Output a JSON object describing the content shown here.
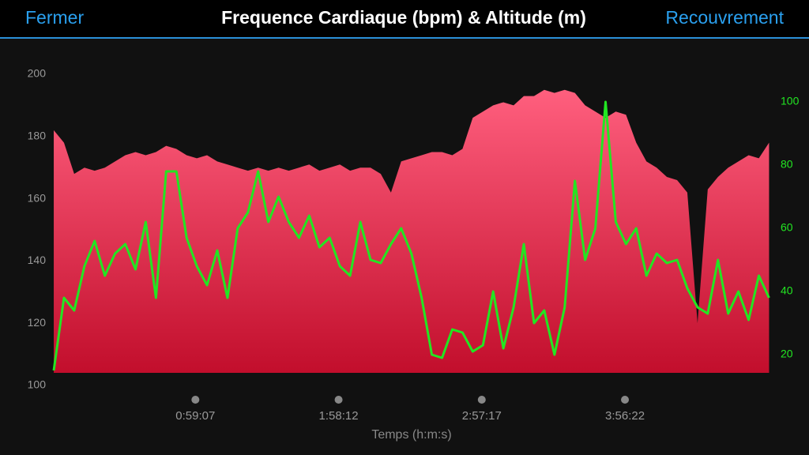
{
  "header": {
    "left_button": "Fermer",
    "right_button": "Recouvrement"
  },
  "chart_data": {
    "type": "area-line",
    "title": "Frequence Cardiaque (bpm) & Altitude (m)",
    "x_label": "Temps (h:m:s)",
    "x": [
      40,
      293,
      546,
      799,
      1052,
      1305,
      1558,
      1811,
      2064,
      2317,
      2570,
      2823,
      3076,
      3329,
      3582,
      3835,
      4088,
      4341,
      4594,
      4847,
      5100,
      5353,
      5606,
      5859,
      6112,
      6365,
      6618,
      6871,
      7124,
      7377,
      7630,
      7883,
      8136,
      8389,
      8642,
      8895,
      9148,
      9401,
      9654,
      9907,
      10160,
      10413,
      10666,
      10919,
      11172,
      11425,
      11678,
      11931,
      12184,
      12437,
      12690,
      12943,
      13196,
      13449,
      13702,
      13955,
      14208,
      14461,
      14714,
      14967,
      15220,
      15473,
      15726,
      15979,
      16232,
      16485,
      16738,
      16991,
      17244,
      17497,
      17750
    ],
    "xlim": [
      0,
      17800
    ],
    "xticks": [
      {
        "value": 3547,
        "label": "0:59:07"
      },
      {
        "value": 7092,
        "label": "1:58:12"
      },
      {
        "value": 10637,
        "label": "2:57:17"
      },
      {
        "value": 14182,
        "label": "3:56:22"
      }
    ],
    "ylim": [
      100,
      200
    ],
    "yticks": [
      100,
      120,
      140,
      160,
      180,
      200
    ],
    "y2lim": [
      10.25,
      108.75
    ],
    "y2ticks": [
      20,
      40,
      60,
      80,
      100
    ],
    "series": [
      {
        "name": "Frequence Cardiaque",
        "color": "#ff5a7a",
        "values": [
          182,
          178,
          168,
          170,
          169,
          170,
          172,
          174,
          175,
          174,
          175,
          177,
          176,
          174,
          173,
          174,
          172,
          171,
          170,
          169,
          170,
          169,
          170,
          169,
          170,
          171,
          169,
          170,
          171,
          169,
          170,
          170,
          168,
          162,
          172,
          173,
          174,
          175,
          175,
          174,
          176,
          186,
          188,
          190,
          191,
          190,
          193,
          193,
          195,
          194,
          195,
          194,
          190,
          188,
          186,
          188,
          187,
          178,
          172,
          170,
          167,
          166,
          162,
          120,
          163,
          167,
          170,
          172,
          174,
          173,
          178
        ]
      },
      {
        "name": "Altitude",
        "color": "#22e622",
        "axis": "y2",
        "values": [
          15,
          38,
          34,
          48,
          56,
          45,
          52,
          55,
          47,
          62,
          38,
          78,
          78,
          57,
          48,
          42,
          53,
          38,
          60,
          65,
          78,
          62,
          70,
          62,
          57,
          64,
          54,
          57,
          48,
          45,
          62,
          50,
          49,
          55,
          60,
          52,
          38,
          20,
          19,
          28,
          27,
          21,
          23,
          40,
          22,
          35,
          55,
          30,
          34,
          20,
          35,
          75,
          50,
          60,
          100,
          62,
          55,
          60,
          45,
          52,
          49,
          50,
          41,
          35,
          33,
          50,
          33,
          40,
          31,
          45,
          38
        ]
      }
    ]
  }
}
